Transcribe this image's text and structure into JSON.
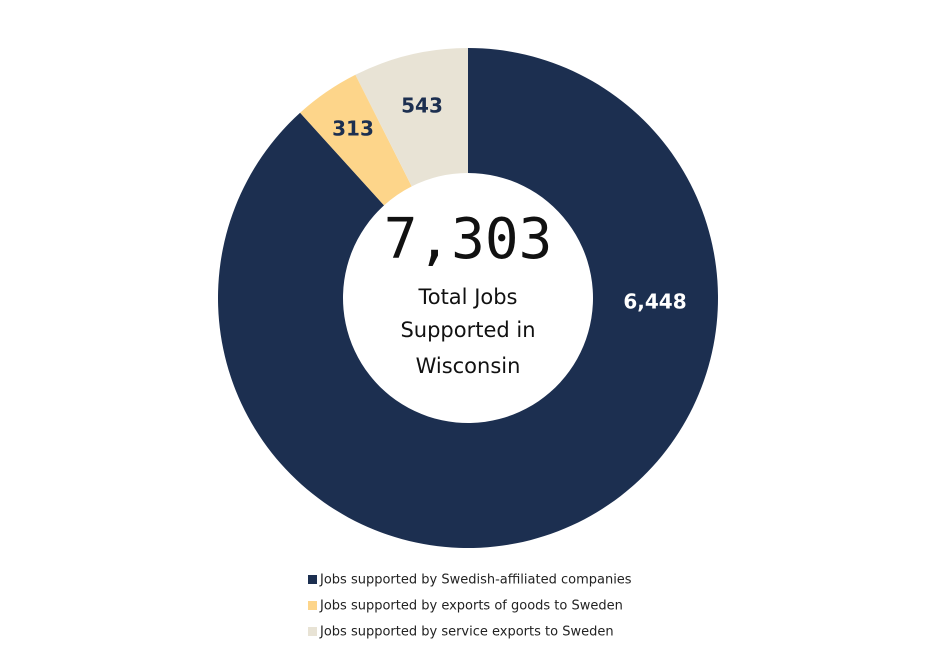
{
  "chart_data": {
    "type": "donut",
    "total_label": "7,303",
    "center_text": [
      "Total Jobs",
      "Supported in",
      "Wisconsin"
    ],
    "categories": [
      "Jobs supported by Swedish-affiliated companies",
      "Jobs supported by exports of goods to Sweden",
      "Jobs supported by service exports to Sweden"
    ],
    "values": [
      6448,
      313,
      543
    ],
    "value_labels": [
      "6,448",
      "313",
      "543"
    ],
    "colors": [
      "#1c2f50",
      "#fdd58a",
      "#e8e3d5"
    ],
    "label_colors": [
      "#ffffff",
      "#1c2f50",
      "#1c2f50"
    ]
  }
}
